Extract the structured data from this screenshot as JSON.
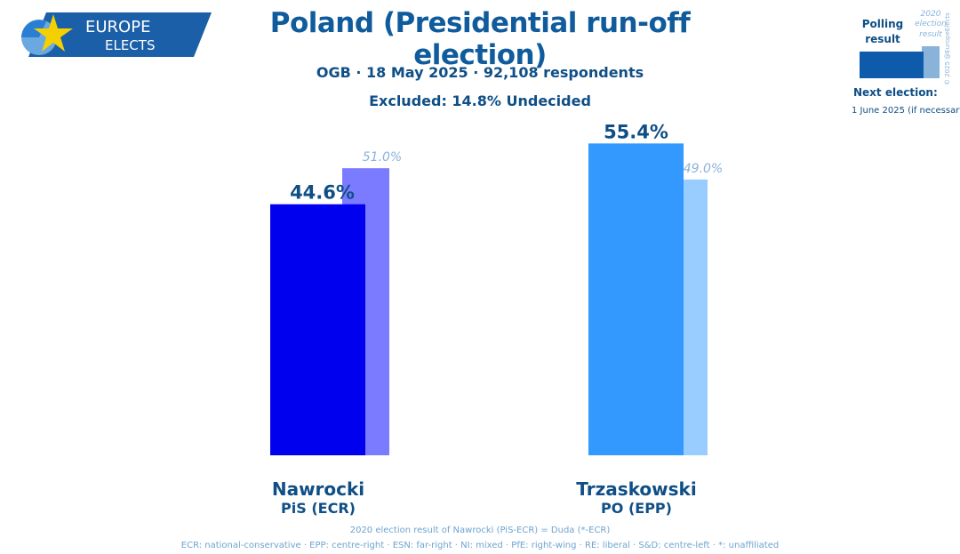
{
  "logo": {
    "line1": "EUROPE",
    "line2": "ELECTS"
  },
  "header": {
    "title": "Poland (Presidential run-off election)",
    "subtitle": "OGB · 18 May 2025 · 92,108 respondents",
    "excluded": "Excluded: 14.8% Undecided"
  },
  "legend": {
    "polling_label_1": "Polling",
    "polling_label_2": "result",
    "previous_label_1": "2020",
    "previous_label_2": "election",
    "previous_label_3": "result",
    "copyright": "© 2025 @EuropeElects",
    "next_election_label": "Next election:",
    "next_election_date": "1 June 2025 (if necessary)"
  },
  "chart_data": {
    "type": "bar",
    "categories": [
      "Nawrocki",
      "Trzaskowski"
    ],
    "parties": [
      "PiS (ECR)",
      "PO (EPP)"
    ],
    "series": [
      {
        "name": "Polling result",
        "values": [
          44.6,
          55.4
        ],
        "labels": [
          "44.6%",
          "55.4%"
        ],
        "colors": [
          "#0000ee",
          "#3399ff"
        ]
      },
      {
        "name": "2020 election result",
        "values": [
          51.0,
          49.0
        ],
        "labels": [
          "51.0%",
          "49.0%"
        ],
        "colors": [
          "#7b7bff",
          "#99ccff"
        ]
      }
    ],
    "ylim": [
      0,
      60
    ],
    "grid": false
  },
  "footer": {
    "note": "2020 election result of Nawrocki (PiS-ECR) = Duda (*-ECR)",
    "groups": "ECR: national-conservative · EPP: centre-right · ESN: far-right · NI: mixed · PfE: right-wing · RE: liberal · S&D: centre-left · *: unaffiliated"
  }
}
